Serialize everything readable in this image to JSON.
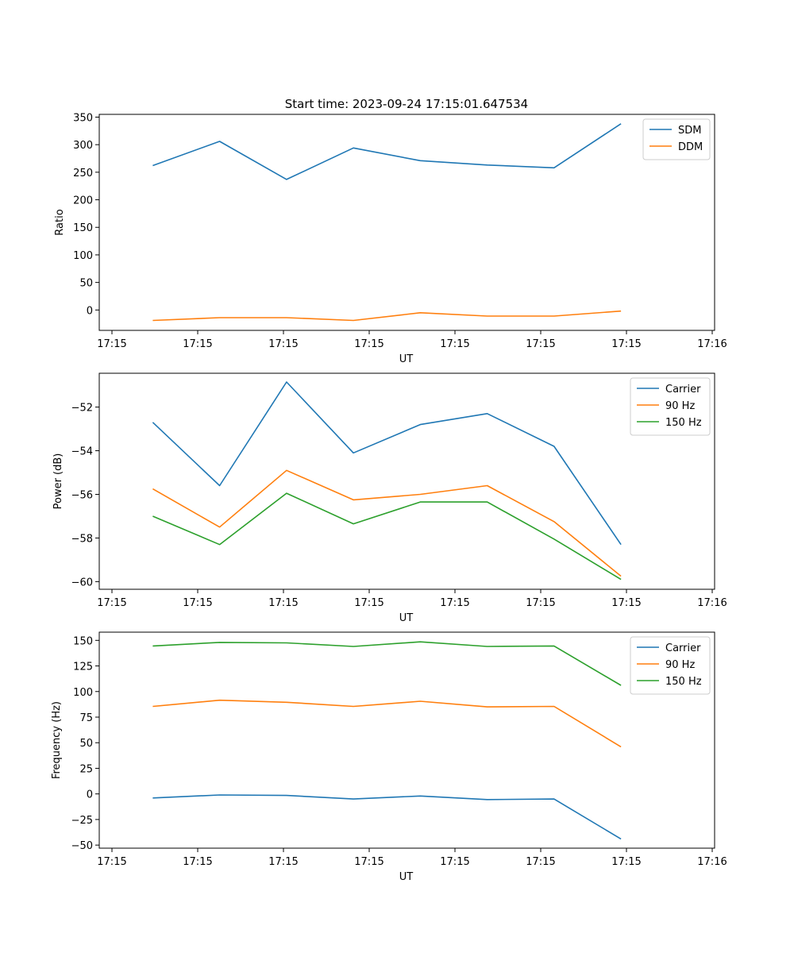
{
  "figure_title": "Start time: 2023-09-24 17:15:01.647534",
  "colors": {
    "blue": "#1f77b4",
    "orange": "#ff7f0e",
    "green": "#2ca02c"
  },
  "chart_data": [
    {
      "type": "line",
      "title": "Start time: 2023-09-24 17:15:01.647534",
      "xlabel": "UT",
      "ylabel": "Ratio",
      "x_tick_labels": [
        "17:15",
        "17:15",
        "17:15",
        "17:15",
        "17:15",
        "17:15",
        "17:15",
        "17:16"
      ],
      "x_points": [
        1,
        2,
        3,
        4,
        5,
        6,
        7,
        8
      ],
      "xlim": [
        0.2,
        9.4
      ],
      "ylim": [
        -37,
        355
      ],
      "yticks": [
        0,
        50,
        100,
        150,
        200,
        250,
        300,
        350
      ],
      "ytick_labels": [
        "0",
        "50",
        "100",
        "150",
        "200",
        "250",
        "300",
        "350"
      ],
      "legend_position": "top-right",
      "series": [
        {
          "name": "SDM",
          "color": "#1f77b4",
          "values": [
            262,
            306,
            237,
            294,
            271,
            263,
            258,
            338
          ]
        },
        {
          "name": "DDM",
          "color": "#ff7f0e",
          "values": [
            -19,
            -14,
            -14,
            -19,
            -5,
            -11,
            -11,
            -2
          ]
        }
      ]
    },
    {
      "type": "line",
      "xlabel": "UT",
      "ylabel": "Power (dB)",
      "x_tick_labels": [
        "17:15",
        "17:15",
        "17:15",
        "17:15",
        "17:15",
        "17:15",
        "17:15",
        "17:16"
      ],
      "x_points": [
        1,
        2,
        3,
        4,
        5,
        6,
        7,
        8
      ],
      "xlim": [
        0.2,
        9.4
      ],
      "ylim": [
        -60.35,
        -50.45
      ],
      "yticks": [
        -60,
        -58,
        -56,
        -54,
        -52
      ],
      "ytick_labels": [
        "−60",
        "−58",
        "−56",
        "−54",
        "−52"
      ],
      "legend_position": "top-right",
      "series": [
        {
          "name": "Carrier",
          "color": "#1f77b4",
          "values": [
            -52.7,
            -55.6,
            -50.85,
            -54.1,
            -52.8,
            -52.3,
            -53.8,
            -58.3
          ]
        },
        {
          "name": "90 Hz",
          "color": "#ff7f0e",
          "values": [
            -55.75,
            -57.5,
            -54.9,
            -56.25,
            -56.0,
            -55.6,
            -57.25,
            -59.75
          ]
        },
        {
          "name": "150 Hz",
          "color": "#2ca02c",
          "values": [
            -57.0,
            -58.3,
            -55.95,
            -57.35,
            -56.35,
            -56.35,
            -58.05,
            -59.9
          ]
        }
      ]
    },
    {
      "type": "line",
      "xlabel": "UT",
      "ylabel": "Frequency (Hz)",
      "x_tick_labels": [
        "17:15",
        "17:15",
        "17:15",
        "17:15",
        "17:15",
        "17:15",
        "17:15",
        "17:16"
      ],
      "x_points": [
        1,
        2,
        3,
        4,
        5,
        6,
        7,
        8
      ],
      "xlim": [
        0.2,
        9.4
      ],
      "ylim": [
        -53,
        158
      ],
      "yticks": [
        -50,
        -25,
        0,
        25,
        50,
        75,
        100,
        125,
        150
      ],
      "ytick_labels": [
        "−50",
        "−25",
        "0",
        "25",
        "50",
        "75",
        "100",
        "125",
        "150"
      ],
      "legend_position": "top-right",
      "series": [
        {
          "name": "Carrier",
          "color": "#1f77b4",
          "values": [
            -4,
            -1,
            -1.5,
            -5,
            -2,
            -5.5,
            -5,
            -44
          ]
        },
        {
          "name": "90 Hz",
          "color": "#ff7f0e",
          "values": [
            85.5,
            91.5,
            89.5,
            85.5,
            90.5,
            85,
            85.5,
            46
          ]
        },
        {
          "name": "150 Hz",
          "color": "#2ca02c",
          "values": [
            144.5,
            148,
            147.5,
            144,
            148.5,
            144,
            144.5,
            106
          ]
        }
      ]
    }
  ]
}
